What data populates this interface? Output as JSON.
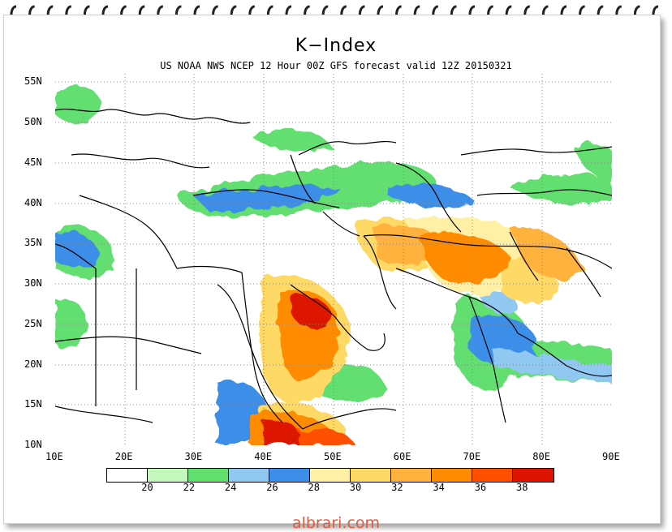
{
  "title": "K−Index",
  "subtitle": "US NOAA NWS NCEP 12 Hour 00Z GFS forecast valid 12Z 20150321",
  "footer": "albrari.com",
  "map": {
    "lon_range": [
      10,
      90
    ],
    "lat_range": [
      10,
      56
    ],
    "lat_ticks": [
      "55N",
      "50N",
      "45N",
      "40N",
      "35N",
      "30N",
      "25N",
      "20N",
      "15N",
      "10N"
    ],
    "lon_ticks": [
      "10E",
      "20E",
      "30E",
      "40E",
      "50E",
      "60E",
      "70E",
      "80E",
      "90E"
    ],
    "grid": "dotted"
  },
  "legend": {
    "colors": [
      "#ffffff",
      "#c3f7bb",
      "#62df6f",
      "#90c8f2",
      "#3c8ee8",
      "#fff0a6",
      "#ffd966",
      "#ffb23d",
      "#ff8b00",
      "#ff5000",
      "#dd1500"
    ],
    "labels": [
      "20",
      "22",
      "24",
      "26",
      "28",
      "30",
      "32",
      "34",
      "36",
      "38"
    ]
  }
}
